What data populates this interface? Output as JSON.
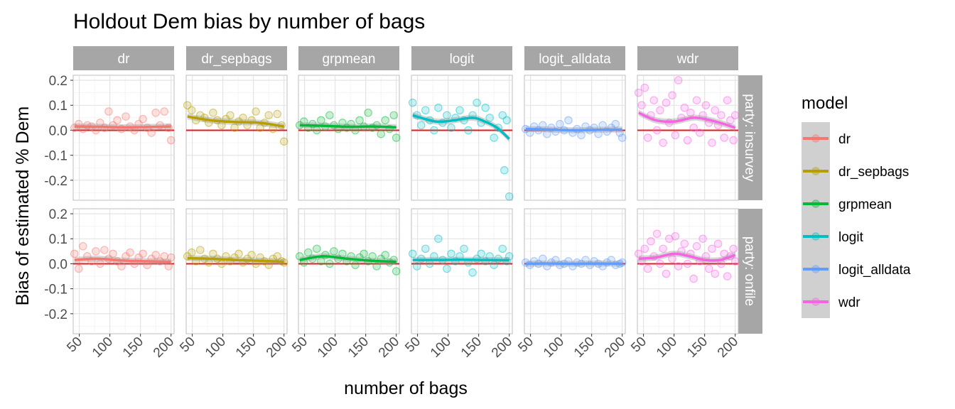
{
  "chart_data": {
    "type": "scatter",
    "title": "Holdout Dem bias by number of bags",
    "xlabel": "number of bags",
    "ylabel": "Bias of estimated % Dem",
    "xlim": [
      40,
      205
    ],
    "ylim": [
      -0.28,
      0.22
    ],
    "x_ticks": [
      50,
      100,
      150,
      200
    ],
    "y_ticks": [
      0.2,
      0.1,
      0.0,
      -0.1,
      -0.2
    ],
    "x_tick_labels": [
      "50",
      "100",
      "150",
      "200"
    ],
    "y_tick_labels": [
      "0.2",
      "0.1",
      "0.0",
      "-0.1",
      "-0.2"
    ],
    "reference_line": {
      "y": 0,
      "color": "#e41a1c"
    },
    "grid": true,
    "facet_columns": [
      "dr",
      "dr_sepbags",
      "grpmean",
      "logit",
      "logit_alldata",
      "wdr"
    ],
    "facet_rows": [
      "party: insurvey",
      "party: onfile"
    ],
    "legend": {
      "title": "model",
      "position": "right",
      "entries": [
        {
          "name": "dr",
          "color": "#F8766D"
        },
        {
          "name": "dr_sepbags",
          "color": "#B79F00"
        },
        {
          "name": "grpmean",
          "color": "#00BA38"
        },
        {
          "name": "logit",
          "color": "#00BFC4"
        },
        {
          "name": "logit_alldata",
          "color": "#619CFF"
        },
        {
          "name": "wdr",
          "color": "#F564E3"
        }
      ]
    },
    "series": [
      {
        "name": "dr",
        "row": "party: insurvey",
        "x": [
          42,
          49,
          56,
          63,
          70,
          77,
          84,
          91,
          98,
          105,
          112,
          119,
          126,
          133,
          140,
          147,
          154,
          161,
          168,
          175,
          182,
          189,
          196,
          200
        ],
        "y": [
          0.01,
          0.025,
          0.005,
          0.02,
          0.015,
          0.0,
          0.03,
          0.01,
          0.075,
          0.02,
          0.04,
          0.005,
          0.055,
          0.015,
          0.0,
          0.025,
          0.045,
          0.01,
          -0.01,
          0.07,
          0.02,
          0.075,
          0.01,
          -0.04
        ],
        "smooth_x": [
          42,
          80,
          120,
          160,
          200
        ],
        "smooth_y": [
          0.015,
          0.014,
          0.012,
          0.013,
          0.015
        ]
      },
      {
        "name": "dr_sepbags",
        "row": "party: insurvey",
        "x": [
          42,
          49,
          56,
          63,
          70,
          77,
          84,
          91,
          98,
          105,
          112,
          119,
          126,
          133,
          140,
          147,
          154,
          161,
          168,
          175,
          182,
          189,
          196,
          200
        ],
        "y": [
          0.1,
          0.08,
          0.04,
          0.06,
          0.05,
          0.03,
          0.07,
          0.04,
          0.02,
          0.045,
          0.06,
          0.01,
          0.035,
          0.05,
          0.02,
          0.04,
          0.075,
          0.01,
          0.03,
          0.06,
          0.005,
          0.065,
          0.02,
          -0.045
        ],
        "smooth_x": [
          42,
          80,
          120,
          160,
          200
        ],
        "smooth_y": [
          0.055,
          0.04,
          0.033,
          0.03,
          0.015
        ]
      },
      {
        "name": "grpmean",
        "row": "party: insurvey",
        "x": [
          42,
          49,
          56,
          63,
          70,
          77,
          84,
          91,
          98,
          105,
          112,
          119,
          126,
          133,
          140,
          147,
          154,
          161,
          168,
          175,
          182,
          189,
          196,
          200
        ],
        "y": [
          0.02,
          0.035,
          0.01,
          0.025,
          0.0,
          0.04,
          0.015,
          0.06,
          0.02,
          0.005,
          0.03,
          0.01,
          0.025,
          0.0,
          0.04,
          0.015,
          0.07,
          0.01,
          0.02,
          -0.015,
          0.04,
          0.005,
          0.06,
          -0.03
        ],
        "smooth_x": [
          42,
          80,
          120,
          160,
          200
        ],
        "smooth_y": [
          0.02,
          0.018,
          0.014,
          0.015,
          0.012
        ]
      },
      {
        "name": "logit",
        "row": "party: insurvey",
        "x": [
          42,
          49,
          56,
          63,
          70,
          77,
          84,
          91,
          98,
          105,
          112,
          119,
          126,
          133,
          140,
          147,
          154,
          161,
          168,
          175,
          182,
          189,
          192,
          196,
          200
        ],
        "y": [
          0.11,
          0.06,
          0.02,
          0.08,
          0.04,
          0.0,
          0.09,
          0.03,
          0.06,
          0.01,
          0.05,
          0.08,
          0.04,
          0.0,
          0.06,
          0.11,
          0.03,
          0.09,
          0.05,
          -0.03,
          0.01,
          0.06,
          -0.16,
          0.04,
          -0.265
        ],
        "smooth_x": [
          42,
          80,
          110,
          140,
          160,
          180,
          200
        ],
        "smooth_y": [
          0.06,
          0.035,
          0.04,
          0.05,
          0.035,
          0.01,
          -0.035
        ]
      },
      {
        "name": "logit_alldata",
        "row": "party: insurvey",
        "x": [
          42,
          49,
          56,
          63,
          70,
          77,
          84,
          91,
          98,
          105,
          112,
          119,
          126,
          133,
          140,
          147,
          154,
          161,
          168,
          175,
          182,
          189,
          196,
          200
        ],
        "y": [
          0.005,
          -0.01,
          0.015,
          0.0,
          0.02,
          -0.015,
          0.01,
          -0.005,
          0.025,
          0.0,
          0.04,
          -0.01,
          0.005,
          -0.02,
          0.015,
          0.0,
          0.01,
          -0.015,
          0.02,
          -0.005,
          0.01,
          0.025,
          -0.01,
          -0.03
        ],
        "smooth_x": [
          42,
          80,
          120,
          160,
          200
        ],
        "smooth_y": [
          0.005,
          0.003,
          0.0,
          0.002,
          0.003
        ]
      },
      {
        "name": "wdr",
        "row": "party: insurvey",
        "x": [
          42,
          47,
          52,
          57,
          62,
          67,
          72,
          77,
          82,
          87,
          92,
          97,
          102,
          107,
          112,
          117,
          122,
          127,
          132,
          137,
          142,
          147,
          152,
          157,
          162,
          167,
          172,
          177,
          182,
          187,
          192,
          197,
          200
        ],
        "y": [
          0.15,
          0.1,
          0.17,
          -0.03,
          0.06,
          0.12,
          0.0,
          0.08,
          -0.05,
          0.11,
          0.03,
          0.14,
          -0.02,
          0.2,
          0.05,
          0.09,
          -0.04,
          0.07,
          0.01,
          0.12,
          -0.01,
          0.06,
          0.1,
          0.03,
          -0.05,
          0.08,
          0.02,
          0.06,
          -0.03,
          0.12,
          0.04,
          -0.04,
          0.06
        ],
        "smooth_x": [
          42,
          70,
          100,
          130,
          150,
          175,
          200
        ],
        "smooth_y": [
          0.07,
          0.04,
          0.035,
          0.05,
          0.045,
          0.03,
          0.01
        ]
      },
      {
        "name": "dr",
        "row": "party: onfile",
        "x": [
          42,
          49,
          56,
          63,
          70,
          77,
          84,
          91,
          98,
          105,
          112,
          119,
          126,
          133,
          140,
          147,
          154,
          161,
          168,
          175,
          182,
          189,
          196,
          200
        ],
        "y": [
          0.04,
          -0.02,
          0.07,
          0.03,
          0.01,
          0.05,
          0.0,
          0.055,
          0.02,
          0.04,
          0.01,
          -0.01,
          0.03,
          0.045,
          0.0,
          0.025,
          0.04,
          -0.005,
          0.02,
          0.035,
          0.01,
          0.03,
          -0.01,
          0.025
        ],
        "smooth_x": [
          42,
          80,
          120,
          160,
          200
        ],
        "smooth_y": [
          0.015,
          0.02,
          0.013,
          0.01,
          0.008
        ]
      },
      {
        "name": "dr_sepbags",
        "row": "party: onfile",
        "x": [
          42,
          49,
          56,
          63,
          70,
          77,
          84,
          91,
          98,
          105,
          112,
          119,
          126,
          133,
          140,
          147,
          154,
          161,
          168,
          175,
          182,
          189,
          196,
          200
        ],
        "y": [
          0.03,
          0.045,
          0.01,
          0.055,
          0.02,
          0.005,
          0.04,
          0.02,
          0.0,
          0.03,
          0.01,
          0.025,
          0.04,
          0.005,
          0.02,
          0.035,
          0.0,
          0.025,
          0.01,
          -0.005,
          0.02,
          0.03,
          0.01,
          0.005
        ],
        "smooth_x": [
          42,
          80,
          120,
          160,
          200
        ],
        "smooth_y": [
          0.022,
          0.02,
          0.015,
          0.012,
          0.008
        ]
      },
      {
        "name": "grpmean",
        "row": "party: onfile",
        "x": [
          42,
          49,
          56,
          63,
          70,
          77,
          84,
          91,
          98,
          105,
          112,
          119,
          126,
          133,
          140,
          147,
          154,
          161,
          168,
          175,
          182,
          189,
          196,
          200
        ],
        "y": [
          0.03,
          0.005,
          0.045,
          0.02,
          0.06,
          0.01,
          0.035,
          0.0,
          0.05,
          0.02,
          0.04,
          0.01,
          0.03,
          -0.005,
          0.025,
          0.04,
          0.01,
          0.03,
          -0.01,
          0.02,
          0.035,
          0.005,
          0.015,
          -0.03
        ],
        "smooth_x": [
          42,
          80,
          120,
          160,
          200
        ],
        "smooth_y": [
          0.015,
          0.03,
          0.02,
          0.012,
          0.008
        ]
      },
      {
        "name": "logit",
        "row": "party: onfile",
        "x": [
          42,
          49,
          56,
          63,
          70,
          77,
          84,
          91,
          98,
          105,
          112,
          119,
          126,
          133,
          140,
          147,
          154,
          161,
          168,
          175,
          182,
          189,
          196,
          200
        ],
        "y": [
          0.04,
          -0.01,
          0.02,
          0.06,
          0.0,
          0.03,
          0.1,
          0.015,
          -0.02,
          0.04,
          0.01,
          0.03,
          0.06,
          0.005,
          -0.035,
          0.02,
          0.04,
          0.01,
          0.03,
          -0.005,
          0.02,
          0.06,
          0.01,
          0.03
        ],
        "smooth_x": [
          42,
          80,
          120,
          160,
          200
        ],
        "smooth_y": [
          0.015,
          0.015,
          0.016,
          0.015,
          0.014
        ]
      },
      {
        "name": "logit_alldata",
        "row": "party: onfile",
        "x": [
          42,
          49,
          56,
          63,
          70,
          77,
          84,
          91,
          98,
          105,
          112,
          119,
          126,
          133,
          140,
          147,
          154,
          161,
          168,
          175,
          182,
          189,
          196,
          200
        ],
        "y": [
          0.005,
          -0.005,
          0.01,
          0.0,
          0.02,
          -0.01,
          0.005,
          0.015,
          -0.005,
          0.0,
          0.01,
          -0.01,
          0.005,
          0.0,
          0.015,
          -0.005,
          0.01,
          0.0,
          -0.01,
          0.005,
          0.015,
          -0.005,
          0.0,
          0.005
        ],
        "smooth_x": [
          42,
          80,
          120,
          160,
          200
        ],
        "smooth_y": [
          0.0,
          0.001,
          0.0,
          0.001,
          0.0
        ]
      },
      {
        "name": "wdr",
        "row": "party: onfile",
        "x": [
          42,
          47,
          52,
          57,
          62,
          67,
          72,
          77,
          82,
          87,
          92,
          97,
          102,
          107,
          112,
          117,
          122,
          127,
          132,
          137,
          142,
          147,
          152,
          157,
          162,
          167,
          172,
          177,
          182,
          187,
          192,
          197,
          200
        ],
        "y": [
          0.04,
          0.01,
          0.06,
          -0.02,
          0.09,
          0.03,
          0.12,
          0.0,
          0.06,
          -0.04,
          0.1,
          0.02,
          0.11,
          -0.01,
          0.05,
          0.08,
          0.0,
          0.04,
          -0.06,
          0.07,
          0.01,
          0.1,
          0.03,
          -0.02,
          0.06,
          -0.04,
          0.08,
          0.0,
          0.04,
          -0.05,
          0.03,
          0.06,
          0.01
        ],
        "smooth_x": [
          42,
          70,
          100,
          125,
          150,
          175,
          200
        ],
        "smooth_y": [
          0.02,
          0.025,
          0.04,
          0.03,
          0.015,
          0.015,
          0.035
        ]
      }
    ]
  }
}
